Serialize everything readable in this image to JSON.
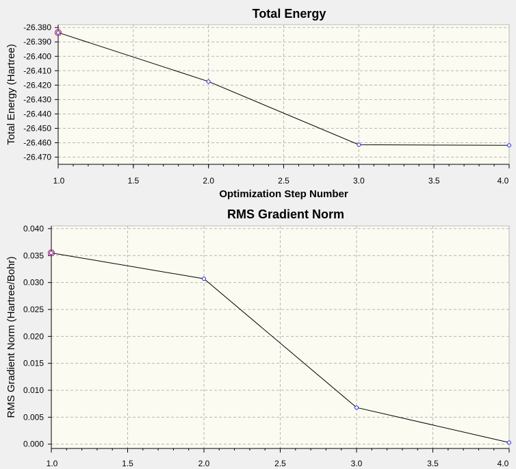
{
  "chart_data": [
    {
      "id": "energy",
      "type": "line",
      "title": "Total Energy",
      "xlabel": "Optimization Step Number",
      "ylabel": "Total Energy (Hartree)",
      "xlim": [
        1.0,
        4.0
      ],
      "ylim": [
        -26.475,
        -26.378
      ],
      "x_ticks": [
        1.0,
        1.5,
        2.0,
        2.5,
        3.0,
        3.5,
        4.0
      ],
      "x_tick_labels": [
        "1.0",
        "1.5",
        "2.0",
        "2.5",
        "3.0",
        "3.5",
        "4.0"
      ],
      "y_ticks": [
        -26.38,
        -26.39,
        -26.4,
        -26.41,
        -26.42,
        -26.43,
        -26.44,
        -26.45,
        -26.46,
        -26.47
      ],
      "y_tick_labels": [
        "-26.380",
        "-26.390",
        "-26.400",
        "-26.410",
        "-26.420",
        "-26.430",
        "-26.440",
        "-26.450",
        "-26.460",
        "-26.470"
      ],
      "grid": true,
      "x": [
        1,
        2,
        3,
        4
      ],
      "y": [
        -26.3835,
        -26.4175,
        -26.4614,
        -26.4618
      ],
      "highlighted_step": 1
    },
    {
      "id": "gradient",
      "type": "line",
      "title": "RMS Gradient Norm",
      "xlabel": "",
      "ylabel": "RMS Gradient Norm (Hartree/Bohr)",
      "xlim": [
        1.0,
        4.0
      ],
      "ylim": [
        -0.0008,
        0.0405
      ],
      "x_ticks": [
        1.0,
        1.5,
        2.0,
        2.5,
        3.0,
        3.5,
        4.0
      ],
      "x_tick_labels": [
        "1.0",
        "1.5",
        "2.0",
        "2.5",
        "3.0",
        "3.5",
        "4.0"
      ],
      "y_ticks": [
        0.04,
        0.035,
        0.03,
        0.025,
        0.02,
        0.015,
        0.01,
        0.005,
        0.0
      ],
      "y_tick_labels": [
        "0.040",
        "0.035",
        "0.030",
        "0.025",
        "0.020",
        "0.015",
        "0.010",
        "0.005",
        "0.000"
      ],
      "grid": true,
      "x": [
        1,
        2,
        3,
        4
      ],
      "y": [
        0.0355,
        0.0307,
        0.0068,
        0.0003
      ],
      "highlighted_step": 1
    }
  ]
}
